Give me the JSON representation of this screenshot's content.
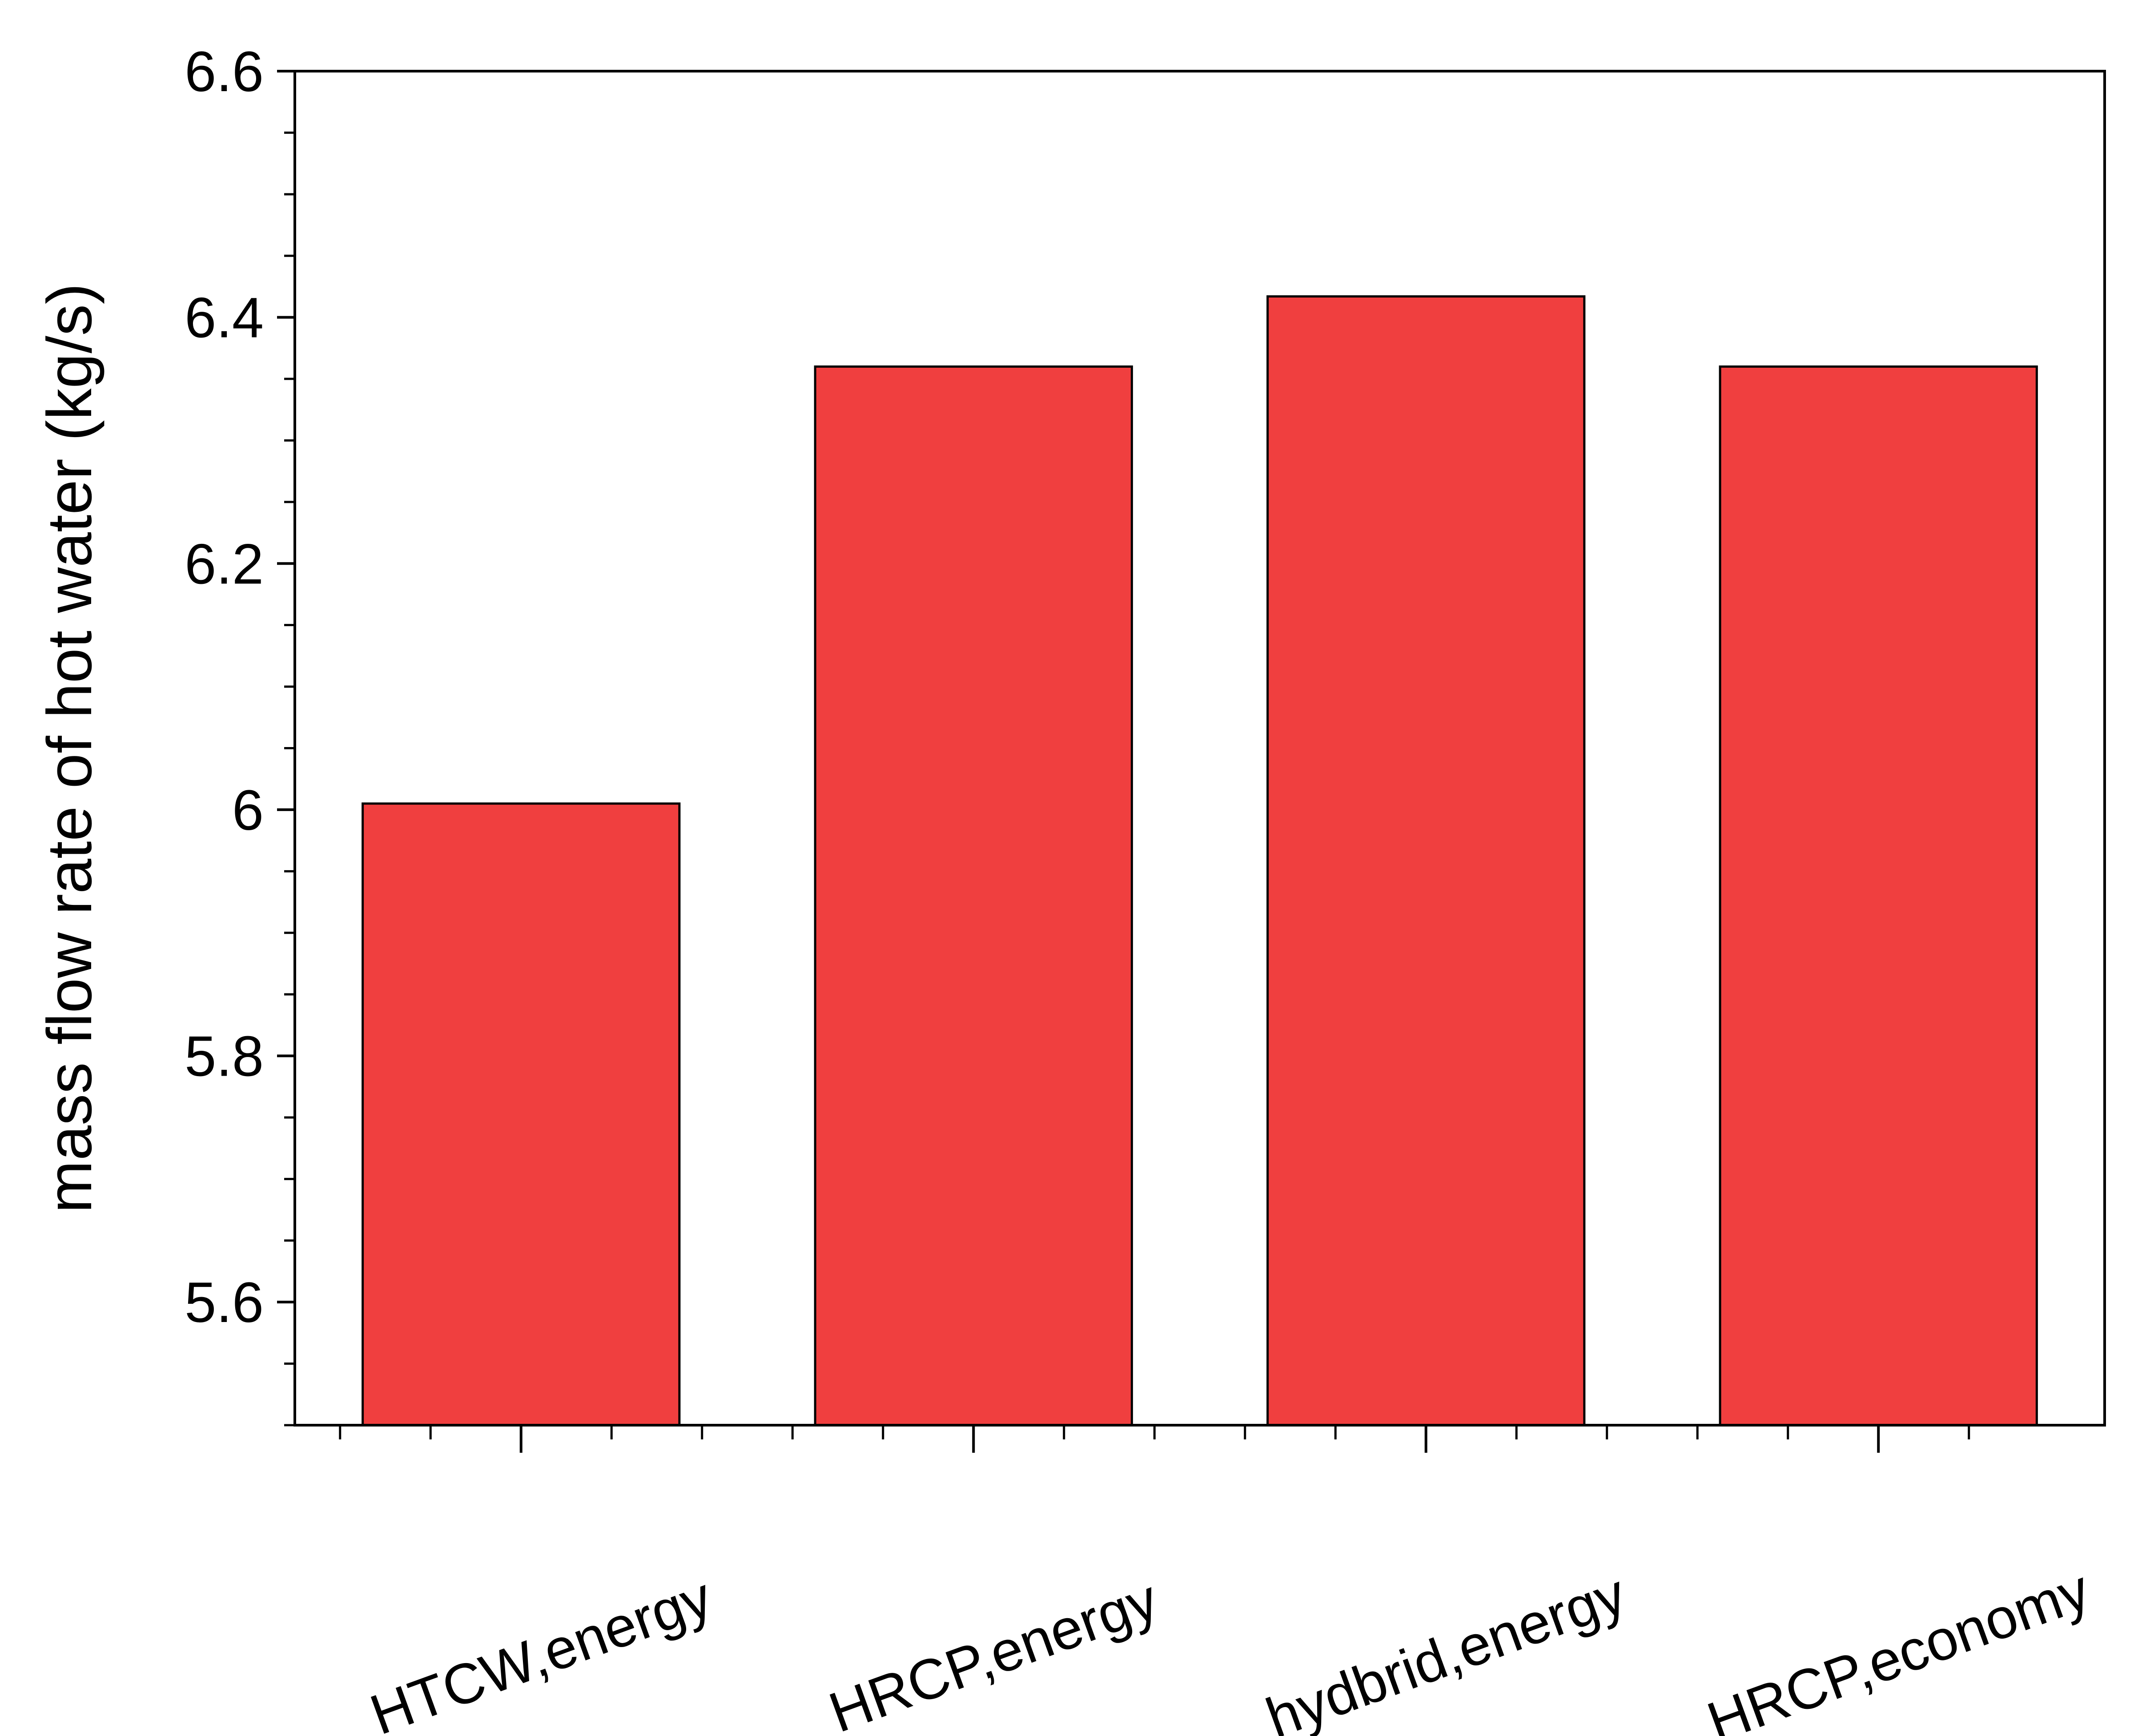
{
  "chart_data": {
    "type": "bar",
    "title": "",
    "xlabel": "",
    "ylabel": "mass flow rate of hot water (kg/s)",
    "categories": [
      "HTCW,energy",
      "HRCP,energy",
      "hydbrid,energy",
      "HRCP,economy"
    ],
    "values": [
      6.005,
      6.36,
      6.417,
      6.36
    ],
    "ylim": [
      5.5,
      6.6
    ],
    "yticks": [
      5.6,
      5.8,
      6.0,
      6.2,
      6.4,
      6.6
    ],
    "ytick_labels": [
      "5.6",
      "5.8",
      "6",
      "6.2",
      "6.4",
      "6.6"
    ],
    "grid": false,
    "legend": "none",
    "bar_color": "#f03f3f",
    "edge_color": "#000000"
  }
}
